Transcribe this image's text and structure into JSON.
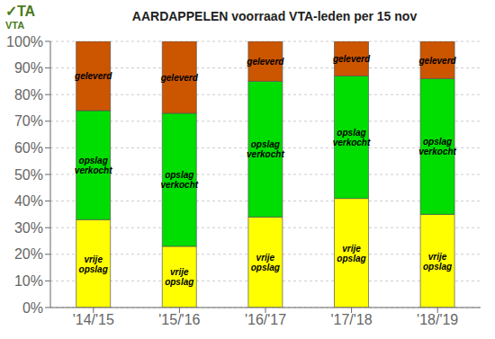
{
  "chart_data": {
    "type": "bar",
    "stacked": true,
    "title": "AARDAPPELEN voorraad VTA-leden per 15 nov",
    "annotations": [
      "✓TA",
      "VTA"
    ],
    "categories": [
      "'14/'15",
      "'15/'16",
      "'16/'17",
      "'17/'18",
      "'18/'19"
    ],
    "series": [
      {
        "name": "vrije\nopslag",
        "color": "#FFFF00",
        "values": [
          33,
          23,
          34,
          41,
          35
        ]
      },
      {
        "name": "opslag\nverkocht",
        "color": "#00DD00",
        "values": [
          41,
          50,
          51,
          46,
          51
        ]
      },
      {
        "name": "geleverd",
        "color": "#CC5500",
        "values": [
          26,
          27,
          15,
          13,
          14
        ]
      }
    ],
    "ylim": [
      0,
      100
    ],
    "yticks": [
      {
        "value": 0,
        "label": "0%"
      },
      {
        "value": 10,
        "label": "10%"
      },
      {
        "value": 20,
        "label": "20%"
      },
      {
        "value": 30,
        "label": "30%"
      },
      {
        "value": 40,
        "label": "40%"
      },
      {
        "value": 50,
        "label": "50%"
      },
      {
        "value": 60,
        "label": "60%"
      },
      {
        "value": 70,
        "label": "70%"
      },
      {
        "value": 80,
        "label": "80%"
      },
      {
        "value": 90,
        "label": "90%"
      },
      {
        "value": 100,
        "label": "100%"
      }
    ],
    "grid": true
  }
}
